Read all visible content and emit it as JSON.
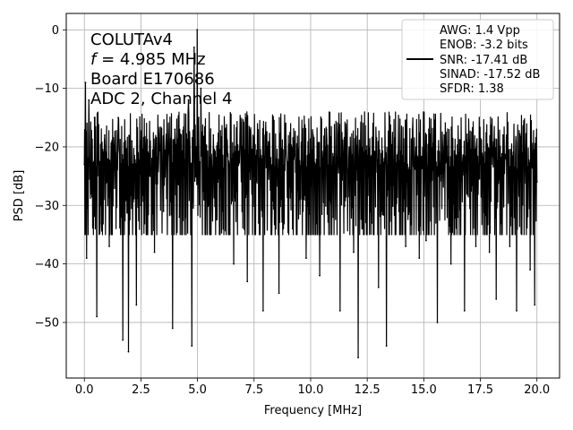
{
  "chart_data": {
    "type": "line",
    "title": "",
    "xlabel": "Frequency [MHz]",
    "ylabel": "PSD [dB]",
    "xlim": [
      -0.8,
      21.0
    ],
    "ylim": [
      -59.5,
      2.8
    ],
    "x_ticks": [
      0.0,
      2.5,
      5.0,
      7.5,
      10.0,
      12.5,
      15.0,
      17.5,
      20.0
    ],
    "x_tick_labels": [
      "0.0",
      "2.5",
      "5.0",
      "7.5",
      "10.0",
      "12.5",
      "15.0",
      "17.5",
      "20.0"
    ],
    "y_ticks": [
      0,
      -10,
      -20,
      -30,
      -40,
      -50
    ],
    "y_tick_labels": [
      "0",
      "−10",
      "−20",
      "−30",
      "−40",
      "−50"
    ],
    "grid": true,
    "line_color": "#000000",
    "annotation": {
      "line1": "COLUTAv4",
      "f_symbol": "f",
      "line2": " = 4.985 MHz",
      "line3": "Board E170686",
      "line4": "ADC 2, Channel 4"
    },
    "legend": {
      "placement": "top-right",
      "lines": [
        "AWG: 1.4 Vpp",
        "ENOB: -3.2 bits",
        "SNR: -17.41 dB",
        "SINAD: -17.52 dB",
        "SFDR: 1.38"
      ]
    },
    "series": [
      {
        "x": [
          0.0,
          0.05,
          0.1,
          0.2,
          0.3,
          0.45,
          0.55,
          0.7,
          0.9,
          1.0,
          1.1,
          1.3,
          1.5,
          1.7,
          1.85,
          1.95,
          2.1,
          2.3,
          2.5,
          2.7,
          2.9,
          3.1,
          3.3,
          3.5,
          3.7,
          3.9,
          4.0,
          4.2,
          4.4,
          4.6,
          4.75,
          4.85,
          4.95,
          4.985,
          5.05,
          5.15,
          5.3,
          5.5,
          5.7,
          5.9,
          6.1,
          6.3,
          6.6,
          6.9,
          7.2,
          7.5,
          7.7,
          7.9,
          8.05,
          8.3,
          8.6,
          8.9,
          9.2,
          9.5,
          9.8,
          10.1,
          10.4,
          10.7,
          11.0,
          11.3,
          11.6,
          11.9,
          12.1,
          12.4,
          12.7,
          13.0,
          13.35,
          13.6,
          13.9,
          14.2,
          14.5,
          14.8,
          15.1,
          15.4,
          15.6,
          15.9,
          16.2,
          16.5,
          16.8,
          17.0,
          17.3,
          17.6,
          17.9,
          18.2,
          18.5,
          18.8,
          19.1,
          19.4,
          19.7,
          19.9,
          20.0
        ],
        "y": [
          -23,
          -9,
          -39,
          -12,
          -28,
          -15,
          -49,
          -33,
          -18,
          -26,
          -37,
          -20,
          -15,
          -53,
          -24,
          -55,
          -19,
          -47,
          -30,
          -20,
          -25,
          -38,
          -18,
          -31,
          -20,
          -51,
          -17,
          -32,
          -25,
          -12,
          -54,
          -3,
          -20,
          0,
          -15,
          -10,
          -22,
          -30,
          -18,
          -26,
          -31,
          -21,
          -40,
          -16,
          -43,
          -25,
          -33,
          -48,
          -18,
          -30,
          -45,
          -16,
          -34,
          -29,
          -39,
          -18,
          -42,
          -17,
          -32,
          -48,
          -18,
          -38,
          -56,
          -21,
          -33,
          -44,
          -54,
          -20,
          -31,
          -37,
          -17,
          -39,
          -36,
          -24,
          -50,
          -18,
          -40,
          -32,
          -48,
          -20,
          -37,
          -22,
          -38,
          -46,
          -18,
          -37,
          -48,
          -19,
          -41,
          -47,
          -26
        ]
      }
    ]
  }
}
